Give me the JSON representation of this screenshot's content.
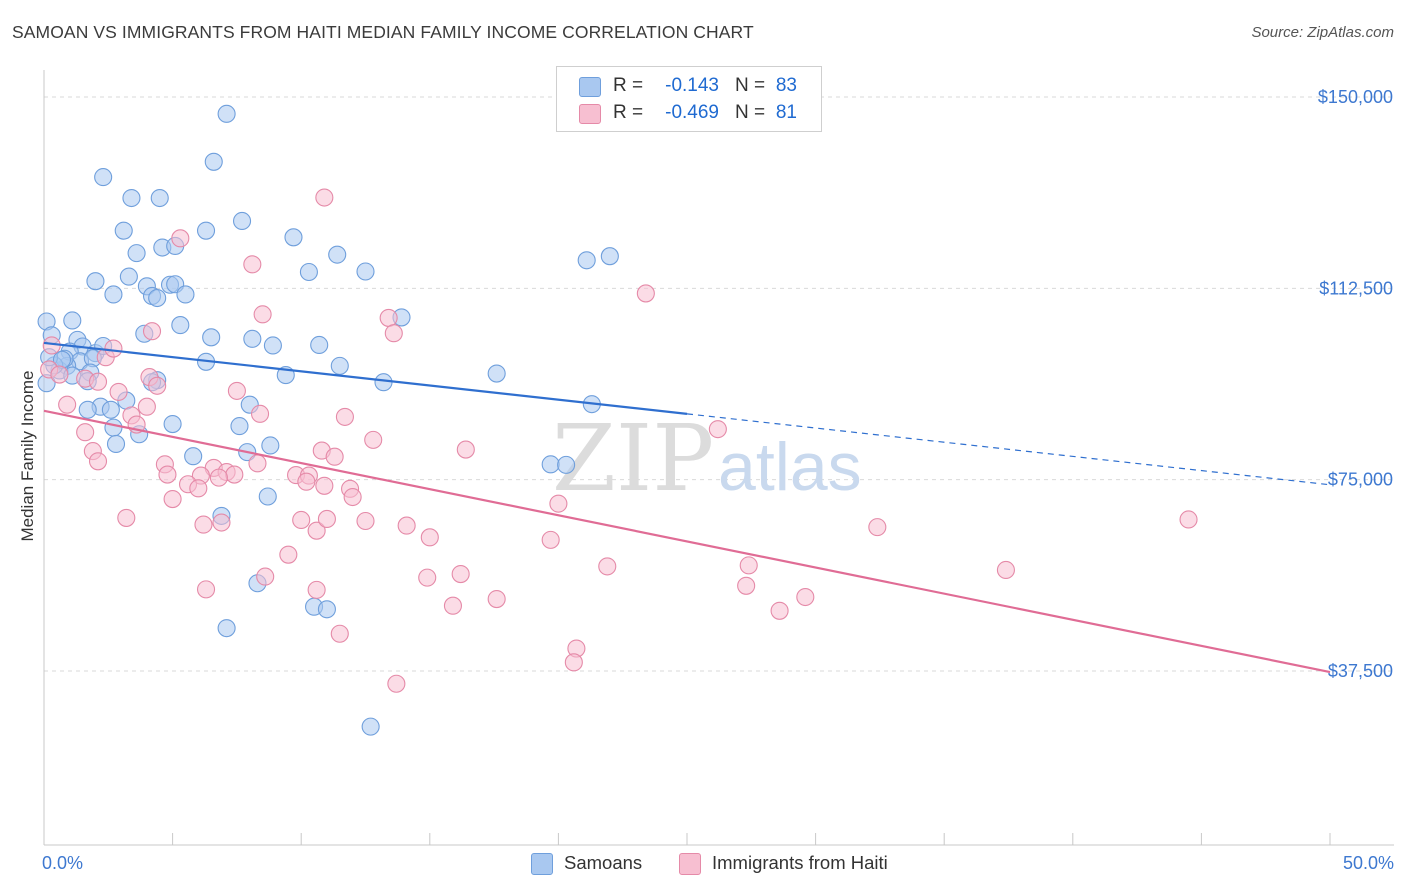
{
  "title": "SAMOAN VS IMMIGRANTS FROM HAITI MEDIAN FAMILY INCOME CORRELATION CHART",
  "source": "Source: ZipAtlas.com",
  "watermark": {
    "zip": "ZIP",
    "atlas": "atlas"
  },
  "legend": {
    "rows": [
      {
        "r_label": "R =",
        "r_value": "-0.143",
        "n_label": "N =",
        "n_value": "83",
        "color": "#a9c8f0",
        "border": "#6f9fdc"
      },
      {
        "r_label": "R =",
        "r_value": "-0.469",
        "n_label": "N =",
        "n_value": "81",
        "color": "#f7bfd1",
        "border": "#e58aa8"
      }
    ]
  },
  "bottom_legend": {
    "series1": "Samoans",
    "series2": "Immigrants from Haiti"
  },
  "chart_data": {
    "type": "scatter",
    "title": "SAMOAN VS IMMIGRANTS FROM HAITI MEDIAN FAMILY INCOME CORRELATION CHART",
    "xlabel": "",
    "ylabel": "Median Family Income",
    "xlim": [
      0,
      50
    ],
    "ylim": [
      0,
      155000
    ],
    "x_tick_labels": [
      "0.0%",
      "50.0%"
    ],
    "y_ticks": [
      {
        "value": 37500,
        "label": "$37,500"
      },
      {
        "value": 75000,
        "label": "$75,000"
      },
      {
        "value": 112500,
        "label": "$112,500"
      },
      {
        "value": 150000,
        "label": "$150,000"
      }
    ],
    "grid": "horizontal dashed",
    "series": [
      {
        "name": "Samoans",
        "color": "#a9c8f0",
        "stroke": "#6f9fdc",
        "line_color": "#2f6fcf",
        "trend": {
          "x0": 0,
          "y0": 101800,
          "x1": 25,
          "y1": 87900,
          "dashed_to_x": 50,
          "dashed_to_y": 74000
        },
        "points": [
          [
            7.1,
            146700
          ],
          [
            6.6,
            137300
          ],
          [
            2.3,
            134300
          ],
          [
            3.4,
            130200
          ],
          [
            4.5,
            130200
          ],
          [
            3.1,
            123800
          ],
          [
            6.3,
            123800
          ],
          [
            7.7,
            125700
          ],
          [
            9.7,
            122500
          ],
          [
            4.6,
            120500
          ],
          [
            5.1,
            120800
          ],
          [
            3.6,
            119400
          ],
          [
            11.4,
            119100
          ],
          [
            12.5,
            115800
          ],
          [
            10.3,
            115700
          ],
          [
            21.1,
            118000
          ],
          [
            22.0,
            118800
          ],
          [
            2.0,
            113900
          ],
          [
            2.7,
            111300
          ],
          [
            3.3,
            114800
          ],
          [
            4.0,
            112900
          ],
          [
            4.2,
            111000
          ],
          [
            4.4,
            110600
          ],
          [
            4.9,
            113200
          ],
          [
            5.1,
            113300
          ],
          [
            5.5,
            111300
          ],
          [
            0.1,
            106000
          ],
          [
            0.3,
            103300
          ],
          [
            1.1,
            106200
          ],
          [
            1.3,
            102400
          ],
          [
            1.5,
            101100
          ],
          [
            2.0,
            99800
          ],
          [
            2.3,
            101200
          ],
          [
            1.0,
            100100
          ],
          [
            1.4,
            98200
          ],
          [
            1.9,
            98800
          ],
          [
            0.9,
            97300
          ],
          [
            0.6,
            96400
          ],
          [
            0.8,
            98700
          ],
          [
            1.8,
            96000
          ],
          [
            1.1,
            95400
          ],
          [
            1.7,
            94300
          ],
          [
            3.9,
            103600
          ],
          [
            5.3,
            105300
          ],
          [
            6.5,
            102900
          ],
          [
            8.1,
            102600
          ],
          [
            8.9,
            101300
          ],
          [
            10.7,
            101400
          ],
          [
            13.9,
            106800
          ],
          [
            6.3,
            98100
          ],
          [
            9.4,
            95500
          ],
          [
            11.5,
            97300
          ],
          [
            13.2,
            94100
          ],
          [
            17.6,
            95800
          ],
          [
            4.4,
            94500
          ],
          [
            4.2,
            94100
          ],
          [
            0.1,
            93900
          ],
          [
            2.2,
            89300
          ],
          [
            2.6,
            88700
          ],
          [
            3.2,
            90500
          ],
          [
            8.0,
            89700
          ],
          [
            7.6,
            85500
          ],
          [
            5.0,
            85900
          ],
          [
            2.7,
            85200
          ],
          [
            3.7,
            83900
          ],
          [
            2.8,
            82000
          ],
          [
            8.8,
            81700
          ],
          [
            7.9,
            80400
          ],
          [
            5.8,
            79600
          ],
          [
            19.7,
            78000
          ],
          [
            20.3,
            77900
          ],
          [
            21.3,
            89800
          ],
          [
            8.7,
            71700
          ],
          [
            6.9,
            67900
          ],
          [
            8.3,
            54700
          ],
          [
            7.1,
            45900
          ],
          [
            10.5,
            50100
          ],
          [
            11.0,
            49600
          ],
          [
            12.7,
            26600
          ],
          [
            1.7,
            88700
          ],
          [
            0.4,
            97400
          ],
          [
            0.2,
            99000
          ],
          [
            0.7,
            98500
          ]
        ]
      },
      {
        "name": "Immigrants from Haiti",
        "color": "#f7bfd1",
        "stroke": "#e58aa8",
        "line_color": "#e06c95",
        "trend": {
          "x0": 0,
          "y0": 88500,
          "x1": 50,
          "y1": 37300
        },
        "points": [
          [
            0.3,
            101300
          ],
          [
            0.2,
            96600
          ],
          [
            0.6,
            95600
          ],
          [
            1.6,
            94800
          ],
          [
            2.1,
            94200
          ],
          [
            2.4,
            99000
          ],
          [
            2.7,
            100700
          ],
          [
            2.9,
            92200
          ],
          [
            4.1,
            95100
          ],
          [
            4.4,
            93400
          ],
          [
            4.2,
            104100
          ],
          [
            5.3,
            122300
          ],
          [
            10.9,
            130300
          ],
          [
            8.1,
            117200
          ],
          [
            8.5,
            107400
          ],
          [
            13.4,
            106700
          ],
          [
            13.6,
            103700
          ],
          [
            23.4,
            111500
          ],
          [
            0.9,
            89700
          ],
          [
            3.4,
            87600
          ],
          [
            4.0,
            89300
          ],
          [
            3.6,
            85800
          ],
          [
            1.6,
            84300
          ],
          [
            1.9,
            80600
          ],
          [
            2.1,
            78600
          ],
          [
            4.7,
            78000
          ],
          [
            7.5,
            92400
          ],
          [
            8.4,
            87900
          ],
          [
            11.7,
            87300
          ],
          [
            12.8,
            82800
          ],
          [
            16.4,
            80900
          ],
          [
            10.8,
            80700
          ],
          [
            11.3,
            79500
          ],
          [
            8.3,
            78200
          ],
          [
            6.6,
            77300
          ],
          [
            7.1,
            76500
          ],
          [
            7.4,
            76000
          ],
          [
            6.1,
            75800
          ],
          [
            5.6,
            74100
          ],
          [
            6.0,
            73300
          ],
          [
            4.8,
            76000
          ],
          [
            5.0,
            71200
          ],
          [
            6.8,
            75400
          ],
          [
            9.8,
            75900
          ],
          [
            10.3,
            75800
          ],
          [
            10.2,
            74600
          ],
          [
            10.9,
            73800
          ],
          [
            11.9,
            73200
          ],
          [
            12.0,
            71600
          ],
          [
            10.0,
            67100
          ],
          [
            10.6,
            65000
          ],
          [
            11.0,
            67300
          ],
          [
            12.5,
            66900
          ],
          [
            14.1,
            66000
          ],
          [
            15.0,
            63700
          ],
          [
            19.7,
            63200
          ],
          [
            20.0,
            70300
          ],
          [
            26.2,
            84900
          ],
          [
            32.4,
            65700
          ],
          [
            37.4,
            57300
          ],
          [
            44.5,
            67200
          ],
          [
            6.2,
            66200
          ],
          [
            6.9,
            66600
          ],
          [
            9.5,
            60300
          ],
          [
            8.6,
            56000
          ],
          [
            6.3,
            53500
          ],
          [
            14.9,
            55800
          ],
          [
            16.2,
            56500
          ],
          [
            10.6,
            53400
          ],
          [
            17.6,
            51600
          ],
          [
            15.9,
            50300
          ],
          [
            21.9,
            58000
          ],
          [
            27.4,
            58200
          ],
          [
            27.3,
            54200
          ],
          [
            28.6,
            49300
          ],
          [
            29.6,
            52000
          ],
          [
            11.5,
            44800
          ],
          [
            20.7,
            41900
          ],
          [
            20.6,
            39200
          ],
          [
            13.7,
            35000
          ],
          [
            3.2,
            67500
          ]
        ]
      }
    ]
  }
}
